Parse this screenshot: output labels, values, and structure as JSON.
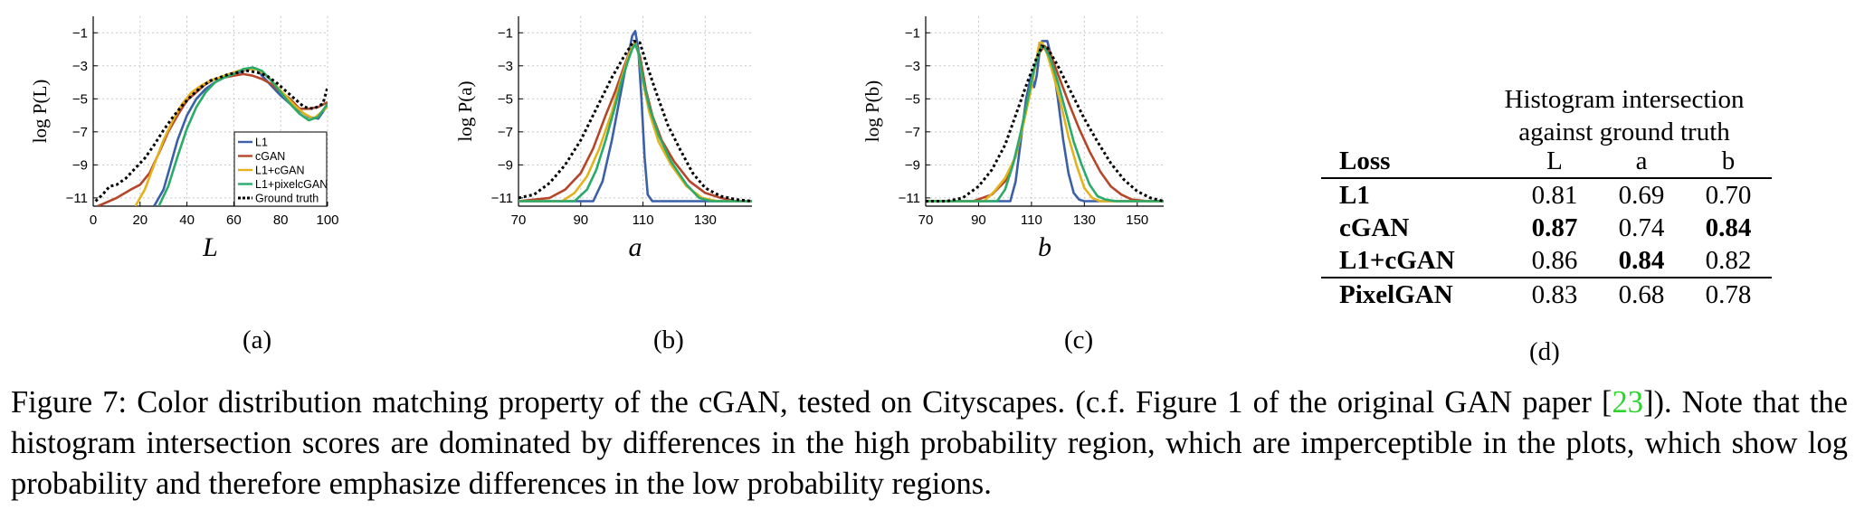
{
  "chart_data": [
    {
      "type": "line",
      "panel_label": "(a)",
      "xlabel": "L",
      "ylabel": "log P(L)",
      "xlim": [
        0,
        100
      ],
      "ylim": [
        -11.5,
        0
      ],
      "xticks": [
        0,
        20,
        40,
        60,
        80,
        100
      ],
      "yticks": [
        -1,
        -3,
        -5,
        -7,
        -9,
        -11
      ],
      "grid": true,
      "legend": "bottom-right",
      "series": [
        {
          "name": "L1",
          "color": "#3b5fa8",
          "dash": false,
          "x": [
            26,
            30,
            33,
            36,
            40,
            44,
            48,
            52,
            56,
            60,
            64,
            68,
            70,
            72,
            76,
            80,
            84,
            88,
            92,
            96,
            100
          ],
          "y": [
            -11.5,
            -10.5,
            -9,
            -7.5,
            -6,
            -5,
            -4.4,
            -4,
            -3.7,
            -3.5,
            -3.3,
            -3.1,
            -3.2,
            -3.6,
            -4.2,
            -4.8,
            -5.3,
            -5.7,
            -6.1,
            -6.2,
            -5.4
          ]
        },
        {
          "name": "cGAN",
          "color": "#b5462a",
          "dash": false,
          "x": [
            2,
            10,
            16,
            20,
            24,
            28,
            32,
            36,
            40,
            44,
            48,
            52,
            56,
            60,
            64,
            68,
            72,
            76,
            80,
            84,
            88,
            92,
            96,
            100
          ],
          "y": [
            -11.5,
            -11,
            -10.5,
            -10.2,
            -9.5,
            -8.3,
            -7,
            -6,
            -5.1,
            -4.6,
            -4.1,
            -3.8,
            -3.7,
            -3.6,
            -3.5,
            -3.6,
            -3.8,
            -4.1,
            -4.6,
            -5,
            -5.6,
            -5.6,
            -5.5,
            -5.2
          ]
        },
        {
          "name": "L1+cGAN",
          "color": "#e3b21c",
          "dash": false,
          "x": [
            18,
            22,
            26,
            30,
            34,
            38,
            42,
            46,
            50,
            54,
            58,
            62,
            66,
            70,
            74,
            78,
            82,
            86,
            90,
            94,
            100
          ],
          "y": [
            -11.5,
            -10.5,
            -9,
            -7.5,
            -6.3,
            -5.3,
            -4.6,
            -4.2,
            -3.9,
            -3.7,
            -3.5,
            -3.3,
            -3.2,
            -3.2,
            -3.6,
            -4.2,
            -4.8,
            -5.4,
            -5.9,
            -6.2,
            -5.5
          ]
        },
        {
          "name": "L1+pixelcGAN",
          "color": "#2aab6a",
          "dash": false,
          "x": [
            28,
            32,
            36,
            40,
            44,
            48,
            52,
            56,
            60,
            64,
            68,
            72,
            76,
            80,
            84,
            88,
            92,
            96,
            100
          ],
          "y": [
            -11.5,
            -10.3,
            -8.5,
            -6.8,
            -5.5,
            -4.6,
            -4,
            -3.7,
            -3.5,
            -3.2,
            -3.1,
            -3.3,
            -3.9,
            -4.6,
            -5.3,
            -5.9,
            -6.3,
            -6.1,
            -5.3
          ]
        },
        {
          "name": "Ground truth",
          "color": "#000000",
          "dash": true,
          "x": [
            1,
            4,
            7,
            10,
            14,
            18,
            22,
            26,
            30,
            34,
            38,
            42,
            46,
            50,
            54,
            58,
            62,
            66,
            70,
            74,
            78,
            82,
            86,
            90,
            94,
            98,
            100
          ],
          "y": [
            -11.2,
            -10.8,
            -10.3,
            -10.2,
            -9.8,
            -9.2,
            -8.6,
            -7.8,
            -6.9,
            -6.1,
            -5.4,
            -4.8,
            -4.3,
            -3.9,
            -3.7,
            -3.5,
            -3.4,
            -3.3,
            -3.4,
            -3.6,
            -4,
            -4.5,
            -5,
            -5.5,
            -5.6,
            -5.3,
            -4.3
          ]
        }
      ]
    },
    {
      "type": "line",
      "panel_label": "(b)",
      "xlabel": "a",
      "ylabel": "log P(a)",
      "xlim": [
        70,
        145
      ],
      "ylim": [
        -11.5,
        0
      ],
      "xticks": [
        70,
        90,
        110,
        130
      ],
      "yticks": [
        -1,
        -3,
        -5,
        -7,
        -9,
        -11
      ],
      "grid": true,
      "series": [
        {
          "name": "L1",
          "color": "#3b5fa8",
          "dash": false,
          "x": [
            70,
            94,
            97,
            100,
            102,
            104,
            105.5,
            106.5,
            107.5,
            108.5,
            109.5,
            110.5,
            111.5,
            113,
            145
          ],
          "y": [
            -11.2,
            -11.2,
            -10,
            -7.5,
            -5.5,
            -3.5,
            -2.2,
            -1.2,
            -0.9,
            -2,
            -5,
            -8.5,
            -10.8,
            -11.2,
            -11.2
          ]
        },
        {
          "name": "cGAN",
          "color": "#b5462a",
          "dash": false,
          "x": [
            70,
            80,
            85,
            90,
            94,
            98,
            101,
            104,
            106,
            107.5,
            109,
            111,
            113,
            116,
            120,
            125,
            130,
            135,
            140,
            145
          ],
          "y": [
            -11.2,
            -11,
            -10.5,
            -9.5,
            -8,
            -6,
            -4.6,
            -3,
            -2,
            -1.6,
            -2.4,
            -4.5,
            -6,
            -7.5,
            -8.8,
            -10,
            -10.7,
            -11,
            -11.2,
            -11.2
          ]
        },
        {
          "name": "L1+cGAN",
          "color": "#e3b21c",
          "dash": false,
          "x": [
            70,
            84,
            88,
            92,
            96,
            100,
            103,
            105,
            106.5,
            107.5,
            108.5,
            110,
            112,
            115,
            119,
            124,
            129,
            134,
            140,
            145
          ],
          "y": [
            -11.2,
            -11.2,
            -10.7,
            -9.7,
            -8,
            -5.8,
            -3.8,
            -2.6,
            -1.8,
            -1.6,
            -2.2,
            -4,
            -5.8,
            -7.6,
            -9,
            -10.3,
            -11,
            -11.2,
            -11.2,
            -11.2
          ]
        },
        {
          "name": "L1+pixelcGAN",
          "color": "#2aab6a",
          "dash": false,
          "x": [
            70,
            88,
            92,
            95,
            98,
            101,
            103,
            105,
            106.5,
            107.5,
            108.5,
            110,
            112,
            115,
            119,
            124,
            128,
            132,
            138,
            145
          ],
          "y": [
            -11.2,
            -11.2,
            -10.5,
            -9.3,
            -7.5,
            -5.5,
            -4,
            -2.8,
            -2,
            -1.7,
            -2.2,
            -3.8,
            -5.5,
            -7.2,
            -8.8,
            -10.2,
            -11,
            -11.2,
            -11.2,
            -11.2
          ]
        },
        {
          "name": "Ground truth",
          "color": "#000000",
          "dash": true,
          "x": [
            70,
            75,
            80,
            85,
            90,
            95,
            100,
            104,
            107,
            109,
            111,
            114,
            118,
            122,
            126,
            130,
            135,
            140,
            145
          ],
          "y": [
            -11,
            -10.8,
            -10.1,
            -9,
            -7.5,
            -5.6,
            -3.7,
            -2.4,
            -1.5,
            -1.6,
            -2.8,
            -4.5,
            -6.6,
            -8.1,
            -9.5,
            -10.4,
            -10.9,
            -11.1,
            -11.2
          ]
        }
      ]
    },
    {
      "type": "line",
      "panel_label": "(c)",
      "xlabel": "b",
      "ylabel": "log P(b)",
      "xlim": [
        70,
        160
      ],
      "ylim": [
        -11.5,
        0
      ],
      "xticks": [
        70,
        90,
        110,
        130,
        150
      ],
      "yticks": [
        -1,
        -3,
        -5,
        -7,
        -9,
        -11
      ],
      "grid": true,
      "series": [
        {
          "name": "L1",
          "color": "#3b5fa8",
          "dash": false,
          "x": [
            70,
            102,
            104,
            106,
            108,
            110,
            111,
            112,
            113,
            114,
            116,
            118,
            120,
            122,
            124,
            126,
            128,
            130,
            160
          ],
          "y": [
            -11.2,
            -11.2,
            -10,
            -7.5,
            -5,
            -3.5,
            -4.3,
            -3.6,
            -2.2,
            -1.5,
            -1.5,
            -2.8,
            -5,
            -7.5,
            -9.5,
            -10.7,
            -11.1,
            -11.2,
            -11.2
          ]
        },
        {
          "name": "cGAN",
          "color": "#b5462a",
          "dash": false,
          "x": [
            70,
            88,
            95,
            100,
            104,
            108,
            111,
            113,
            115,
            117,
            120,
            124,
            128,
            132,
            136,
            140,
            144,
            148,
            154,
            160
          ],
          "y": [
            -11.2,
            -11.2,
            -10.8,
            -10,
            -8.5,
            -5.5,
            -3.2,
            -2.2,
            -1.8,
            -2.2,
            -3.5,
            -5.2,
            -6.8,
            -8.2,
            -9.4,
            -10.3,
            -10.8,
            -11.1,
            -11.2,
            -11.2
          ]
        },
        {
          "name": "L1+cGAN",
          "color": "#e3b21c",
          "dash": false,
          "x": [
            70,
            92,
            96,
            100,
            104,
            107,
            110,
            112,
            113,
            114,
            116,
            118,
            121,
            124,
            127,
            130,
            133,
            136,
            140,
            160
          ],
          "y": [
            -11.2,
            -11.2,
            -10.6,
            -9.8,
            -8.5,
            -6.5,
            -4.3,
            -2.5,
            -1.6,
            -1.6,
            -2.3,
            -3.4,
            -5.2,
            -7.3,
            -9,
            -10.4,
            -11,
            -11.2,
            -11.2,
            -11.2
          ]
        },
        {
          "name": "L1+pixelcGAN",
          "color": "#2aab6a",
          "dash": false,
          "x": [
            70,
            97,
            100,
            103,
            106,
            109,
            111,
            113,
            114,
            115,
            117,
            120,
            123,
            126,
            129,
            132,
            135,
            138,
            142,
            160
          ],
          "y": [
            -11.2,
            -11.2,
            -10.5,
            -9,
            -7,
            -4.7,
            -3.2,
            -2.1,
            -1.8,
            -1.9,
            -2.5,
            -4,
            -5.8,
            -7.6,
            -9,
            -10.2,
            -10.9,
            -11.1,
            -11.2,
            -11.2
          ]
        },
        {
          "name": "Ground truth",
          "color": "#000000",
          "dash": true,
          "x": [
            70,
            78,
            84,
            90,
            95,
            100,
            104,
            108,
            112,
            114,
            116,
            120,
            125,
            130,
            135,
            140,
            145,
            150,
            155,
            160
          ],
          "y": [
            -11.2,
            -11.2,
            -11,
            -10.3,
            -9.3,
            -7.8,
            -6,
            -4.2,
            -2.5,
            -1.8,
            -1.9,
            -3,
            -4.6,
            -6.2,
            -7.6,
            -8.9,
            -9.9,
            -10.6,
            -11,
            -11.2
          ]
        }
      ]
    },
    {
      "type": "table",
      "panel_label": "(d)",
      "header_title_line1": "Histogram intersection",
      "header_title_line2": "against ground truth",
      "columns": [
        "Loss",
        "L",
        "a",
        "b"
      ],
      "rows": [
        {
          "name": "L1",
          "values": [
            "0.81",
            "0.69",
            "0.70"
          ],
          "bold": [
            false,
            false,
            false
          ]
        },
        {
          "name": "cGAN",
          "values": [
            "0.87",
            "0.74",
            "0.84"
          ],
          "bold": [
            true,
            false,
            true
          ]
        },
        {
          "name": "L1+cGAN",
          "values": [
            "0.86",
            "0.84",
            "0.82"
          ],
          "bold": [
            false,
            true,
            false
          ]
        },
        {
          "name": "PixelGAN",
          "values": [
            "0.83",
            "0.68",
            "0.78"
          ],
          "bold": [
            false,
            false,
            false
          ]
        }
      ]
    }
  ],
  "caption": {
    "text_before": "Figure 7: Color distribution matching property of the cGAN, tested on Cityscapes. (c.f. Figure 1 of the original GAN paper [",
    "citation": "23",
    "text_after": "]). Note that the histogram intersection scores are dominated by differences in the high probability region, which are imperceptible in the plots, which show log probability and therefore emphasize differences in the low probability regions."
  }
}
